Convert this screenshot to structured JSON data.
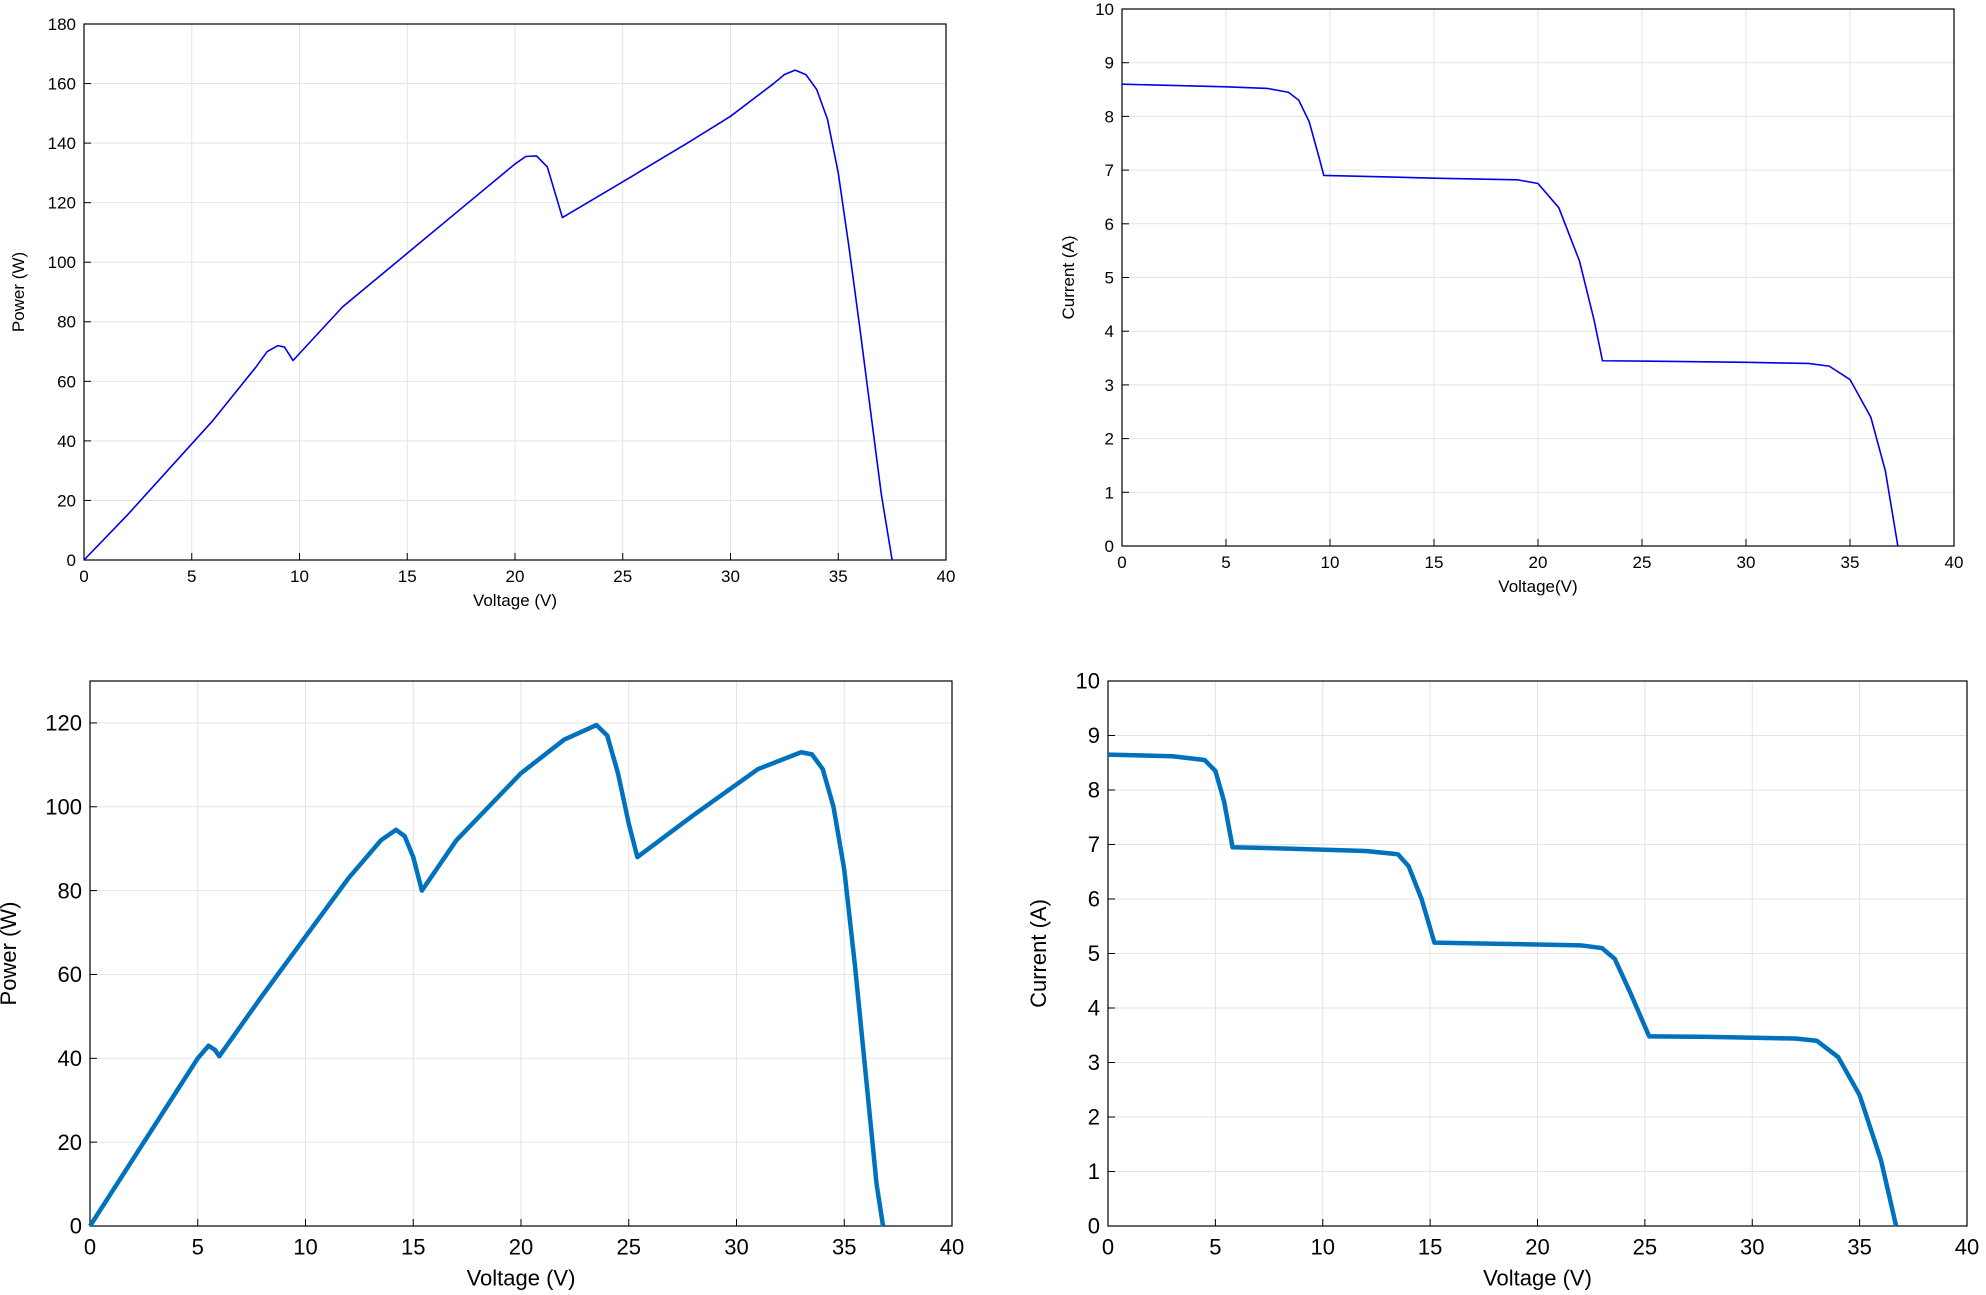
{
  "chart_data": [
    {
      "type": "line",
      "x_label": "Voltage (V)",
      "y_label": "Power (W)",
      "xlim": [
        0,
        40
      ],
      "ylim": [
        0,
        180
      ],
      "xticks": [
        0,
        5,
        10,
        15,
        20,
        25,
        30,
        35,
        40
      ],
      "yticks": [
        0,
        20,
        40,
        60,
        80,
        100,
        120,
        140,
        160,
        180
      ],
      "grid": true,
      "x": [
        0,
        2,
        4,
        6,
        8,
        8.5,
        9,
        9.3,
        9.7,
        12,
        15,
        18,
        20,
        20.5,
        21,
        21.5,
        22.2,
        25,
        28,
        30,
        32,
        32.5,
        33,
        33.5,
        34,
        34.5,
        35,
        35.5,
        36,
        36.5,
        37,
        37.5
      ],
      "series": [
        {
          "color": "#0000ee",
          "values": [
            0,
            15,
            31,
            47,
            65,
            70,
            72,
            71.5,
            67,
            85,
            103,
            121,
            133,
            135.5,
            135.7,
            132,
            115,
            127,
            140,
            149,
            160,
            163,
            164.5,
            163,
            158,
            148,
            130,
            105,
            78,
            50,
            22,
            0
          ]
        }
      ]
    },
    {
      "type": "line",
      "x_label": "Voltage(V)",
      "y_label": "Current (A)",
      "xlim": [
        0,
        40
      ],
      "ylim": [
        0,
        10
      ],
      "xticks": [
        0,
        5,
        10,
        15,
        20,
        25,
        30,
        35,
        40
      ],
      "yticks": [
        0,
        1,
        2,
        3,
        4,
        5,
        6,
        7,
        8,
        9,
        10
      ],
      "grid": true,
      "x": [
        0,
        5,
        7,
        8,
        8.5,
        9,
        9.5,
        9.7,
        12,
        15,
        19,
        20,
        21,
        22,
        22.7,
        23.1,
        26,
        30,
        33,
        34,
        35,
        36,
        36.7,
        37.3
      ],
      "series": [
        {
          "color": "#0000ee",
          "values": [
            8.6,
            8.55,
            8.52,
            8.45,
            8.3,
            7.9,
            7.2,
            6.9,
            6.88,
            6.85,
            6.82,
            6.75,
            6.3,
            5.3,
            4.2,
            3.45,
            3.44,
            3.42,
            3.4,
            3.35,
            3.1,
            2.4,
            1.4,
            0
          ]
        }
      ]
    },
    {
      "type": "line",
      "x_label": "Voltage (V)",
      "y_label": "Power (W)",
      "xlim": [
        0,
        40
      ],
      "ylim": [
        0,
        130
      ],
      "xticks": [
        0,
        5,
        10,
        15,
        20,
        25,
        30,
        35,
        40
      ],
      "yticks": [
        0,
        20,
        40,
        60,
        80,
        100,
        120
      ],
      "grid": true,
      "x": [
        0,
        2,
        4,
        5,
        5.5,
        5.8,
        6,
        8,
        10,
        12,
        13.5,
        14.2,
        14.6,
        15,
        15.4,
        17,
        20,
        22,
        23.5,
        24,
        24.5,
        25,
        25.4,
        28,
        31,
        33,
        33.5,
        34,
        34.5,
        35,
        35.5,
        36,
        36.5,
        36.8
      ],
      "series": [
        {
          "color": "#0072bd",
          "values": [
            0,
            16,
            32,
            40,
            43,
            42,
            40.5,
            55,
            69,
            83,
            92,
            94.5,
            93,
            88,
            80,
            92,
            108,
            116,
            119.5,
            117,
            108,
            96,
            88,
            98,
            109,
            113,
            112.5,
            109,
            100,
            85,
            62,
            36,
            10,
            0
          ]
        }
      ]
    },
    {
      "type": "line",
      "x_label": "Voltage (V)",
      "y_label": "Current (A)",
      "xlim": [
        0,
        40
      ],
      "ylim": [
        0,
        10
      ],
      "xticks": [
        0,
        5,
        10,
        15,
        20,
        25,
        30,
        35,
        40
      ],
      "yticks": [
        0,
        1,
        2,
        3,
        4,
        5,
        6,
        7,
        8,
        9,
        10
      ],
      "grid": true,
      "x": [
        0,
        3,
        4.5,
        5,
        5.4,
        5.8,
        8,
        12,
        13.5,
        14,
        14.6,
        15.2,
        18,
        22,
        23,
        23.6,
        24.3,
        25.2,
        28,
        32,
        33,
        34,
        35,
        36,
        36.7
      ],
      "series": [
        {
          "color": "#0072bd",
          "values": [
            8.65,
            8.62,
            8.55,
            8.35,
            7.8,
            6.95,
            6.93,
            6.88,
            6.82,
            6.6,
            6,
            5.2,
            5.18,
            5.15,
            5.1,
            4.9,
            4.3,
            3.48,
            3.47,
            3.44,
            3.4,
            3.1,
            2.4,
            1.2,
            0
          ]
        }
      ]
    }
  ]
}
